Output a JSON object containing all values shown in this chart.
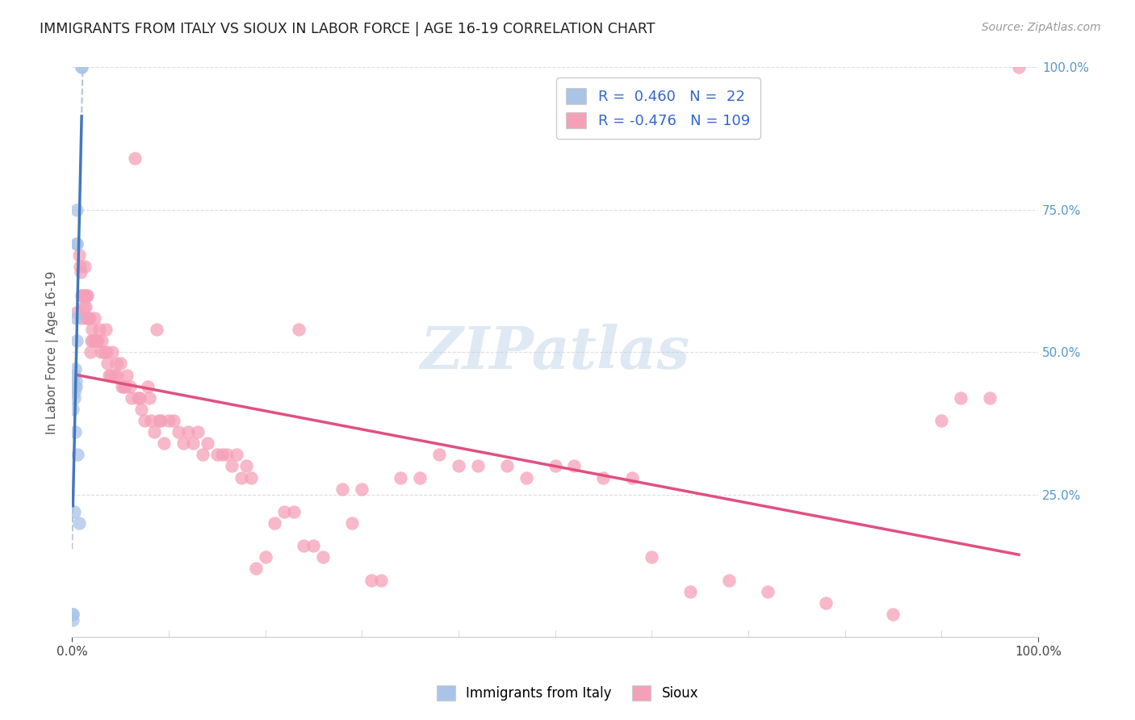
{
  "title": "IMMIGRANTS FROM ITALY VS SIOUX IN LABOR FORCE | AGE 16-19 CORRELATION CHART",
  "source_text": "Source: ZipAtlas.com",
  "ylabel": "In Labor Force | Age 16-19",
  "xlim": [
    0.0,
    1.0
  ],
  "ylim": [
    0.0,
    1.0
  ],
  "background_color": "#ffffff",
  "grid_color": "#dddddd",
  "watermark_text": "ZIPatlas",
  "legend_R_italy": "0.460",
  "legend_N_italy": "22",
  "legend_R_sioux": "-0.476",
  "legend_N_sioux": "109",
  "italy_color": "#aac4e8",
  "sioux_color": "#f5a0b8",
  "italy_line_color": "#4477bb",
  "sioux_line_color": "#e05080",
  "italy_trend_dashed_color": "#aabbdd",
  "italy_points": [
    [
      0.001,
      0.04
    ],
    [
      0.001,
      0.03
    ],
    [
      0.001,
      0.04
    ],
    [
      0.001,
      0.4
    ],
    [
      0.002,
      0.43
    ],
    [
      0.002,
      0.46
    ],
    [
      0.002,
      0.42
    ],
    [
      0.003,
      0.44
    ],
    [
      0.003,
      0.36
    ],
    [
      0.003,
      0.47
    ],
    [
      0.004,
      0.56
    ],
    [
      0.004,
      0.44
    ],
    [
      0.004,
      0.45
    ],
    [
      0.005,
      0.69
    ],
    [
      0.005,
      0.69
    ],
    [
      0.005,
      0.75
    ],
    [
      0.005,
      0.52
    ],
    [
      0.006,
      0.32
    ],
    [
      0.007,
      0.2
    ],
    [
      0.01,
      1.0
    ],
    [
      0.01,
      1.0
    ],
    [
      0.002,
      0.22
    ]
  ],
  "sioux_points": [
    [
      0.005,
      0.57
    ],
    [
      0.007,
      0.67
    ],
    [
      0.008,
      0.65
    ],
    [
      0.009,
      0.64
    ],
    [
      0.01,
      0.6
    ],
    [
      0.01,
      0.56
    ],
    [
      0.011,
      0.6
    ],
    [
      0.012,
      0.58
    ],
    [
      0.013,
      0.6
    ],
    [
      0.013,
      0.65
    ],
    [
      0.014,
      0.58
    ],
    [
      0.015,
      0.56
    ],
    [
      0.015,
      0.6
    ],
    [
      0.016,
      0.6
    ],
    [
      0.017,
      0.56
    ],
    [
      0.018,
      0.56
    ],
    [
      0.019,
      0.5
    ],
    [
      0.02,
      0.52
    ],
    [
      0.021,
      0.54
    ],
    [
      0.022,
      0.52
    ],
    [
      0.023,
      0.56
    ],
    [
      0.024,
      0.52
    ],
    [
      0.025,
      0.52
    ],
    [
      0.026,
      0.52
    ],
    [
      0.027,
      0.52
    ],
    [
      0.028,
      0.54
    ],
    [
      0.03,
      0.5
    ],
    [
      0.031,
      0.52
    ],
    [
      0.033,
      0.5
    ],
    [
      0.035,
      0.54
    ],
    [
      0.036,
      0.5
    ],
    [
      0.037,
      0.48
    ],
    [
      0.038,
      0.46
    ],
    [
      0.04,
      0.46
    ],
    [
      0.042,
      0.5
    ],
    [
      0.044,
      0.46
    ],
    [
      0.046,
      0.48
    ],
    [
      0.047,
      0.46
    ],
    [
      0.05,
      0.48
    ],
    [
      0.052,
      0.44
    ],
    [
      0.053,
      0.44
    ],
    [
      0.055,
      0.44
    ],
    [
      0.057,
      0.46
    ],
    [
      0.06,
      0.44
    ],
    [
      0.062,
      0.42
    ],
    [
      0.065,
      0.84
    ],
    [
      0.068,
      0.42
    ],
    [
      0.07,
      0.42
    ],
    [
      0.072,
      0.4
    ],
    [
      0.075,
      0.38
    ],
    [
      0.078,
      0.44
    ],
    [
      0.08,
      0.42
    ],
    [
      0.082,
      0.38
    ],
    [
      0.085,
      0.36
    ],
    [
      0.088,
      0.54
    ],
    [
      0.09,
      0.38
    ],
    [
      0.092,
      0.38
    ],
    [
      0.095,
      0.34
    ],
    [
      0.1,
      0.38
    ],
    [
      0.105,
      0.38
    ],
    [
      0.11,
      0.36
    ],
    [
      0.115,
      0.34
    ],
    [
      0.12,
      0.36
    ],
    [
      0.125,
      0.34
    ],
    [
      0.13,
      0.36
    ],
    [
      0.135,
      0.32
    ],
    [
      0.14,
      0.34
    ],
    [
      0.15,
      0.32
    ],
    [
      0.155,
      0.32
    ],
    [
      0.16,
      0.32
    ],
    [
      0.165,
      0.3
    ],
    [
      0.17,
      0.32
    ],
    [
      0.175,
      0.28
    ],
    [
      0.18,
      0.3
    ],
    [
      0.185,
      0.28
    ],
    [
      0.19,
      0.12
    ],
    [
      0.2,
      0.14
    ],
    [
      0.21,
      0.2
    ],
    [
      0.22,
      0.22
    ],
    [
      0.23,
      0.22
    ],
    [
      0.235,
      0.54
    ],
    [
      0.24,
      0.16
    ],
    [
      0.25,
      0.16
    ],
    [
      0.26,
      0.14
    ],
    [
      0.28,
      0.26
    ],
    [
      0.29,
      0.2
    ],
    [
      0.3,
      0.26
    ],
    [
      0.31,
      0.1
    ],
    [
      0.32,
      0.1
    ],
    [
      0.34,
      0.28
    ],
    [
      0.36,
      0.28
    ],
    [
      0.38,
      0.32
    ],
    [
      0.4,
      0.3
    ],
    [
      0.42,
      0.3
    ],
    [
      0.45,
      0.3
    ],
    [
      0.47,
      0.28
    ],
    [
      0.5,
      0.3
    ],
    [
      0.52,
      0.3
    ],
    [
      0.55,
      0.28
    ],
    [
      0.58,
      0.28
    ],
    [
      0.6,
      0.14
    ],
    [
      0.64,
      0.08
    ],
    [
      0.68,
      0.1
    ],
    [
      0.72,
      0.08
    ],
    [
      0.78,
      0.06
    ],
    [
      0.85,
      0.04
    ],
    [
      0.9,
      0.38
    ],
    [
      0.92,
      0.42
    ],
    [
      0.95,
      0.42
    ],
    [
      0.98,
      1.0
    ]
  ]
}
